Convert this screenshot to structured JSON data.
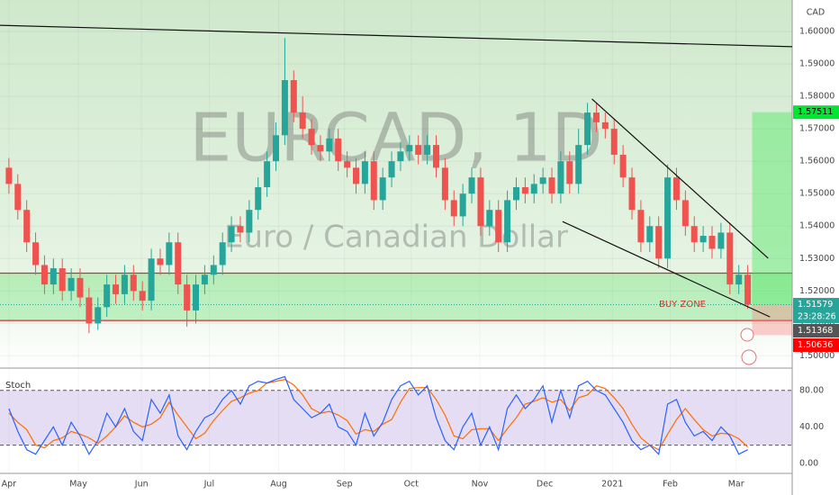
{
  "chart_data": {
    "type": "candlestick",
    "symbol_title": "EURCAD, 1D",
    "subtitle": "Euro / Canadian Dollar",
    "currency": "CAD",
    "open": [
      1.558,
      1.553,
      1.545,
      1.535,
      1.528,
      1.522,
      1.527,
      1.52,
      1.524,
      1.518,
      1.51,
      1.515,
      1.522,
      1.519,
      1.525,
      1.52,
      1.517,
      1.53,
      1.528,
      1.535,
      1.522,
      1.514,
      1.522,
      1.525,
      1.528,
      1.535,
      1.54,
      1.538,
      1.545,
      1.552,
      1.56,
      1.568,
      1.585,
      1.575,
      1.57,
      1.565,
      1.563,
      1.567,
      1.56,
      1.558,
      1.553,
      1.56,
      1.548,
      1.555,
      1.56,
      1.563,
      1.565,
      1.562,
      1.565,
      1.558,
      1.548,
      1.543,
      1.55,
      1.555,
      1.54,
      1.545,
      1.535,
      1.548,
      1.552,
      1.55,
      1.553,
      1.555,
      1.55,
      1.56,
      1.553,
      1.565,
      1.575,
      1.572,
      1.57,
      1.562,
      1.555,
      1.545,
      1.535,
      1.54,
      1.53,
      1.555,
      1.548,
      1.54,
      1.535,
      1.537,
      1.533,
      1.538,
      1.522,
      1.525
    ],
    "high": [
      1.561,
      1.556,
      1.548,
      1.538,
      1.531,
      1.53,
      1.53,
      1.527,
      1.527,
      1.521,
      1.518,
      1.525,
      1.525,
      1.528,
      1.528,
      1.523,
      1.533,
      1.533,
      1.538,
      1.538,
      1.525,
      1.525,
      1.528,
      1.531,
      1.538,
      1.543,
      1.543,
      1.548,
      1.555,
      1.563,
      1.572,
      1.598,
      1.588,
      1.58,
      1.573,
      1.568,
      1.57,
      1.57,
      1.563,
      1.561,
      1.563,
      1.563,
      1.558,
      1.563,
      1.566,
      1.568,
      1.568,
      1.568,
      1.568,
      1.561,
      1.551,
      1.553,
      1.558,
      1.558,
      1.548,
      1.548,
      1.551,
      1.555,
      1.555,
      1.556,
      1.558,
      1.558,
      1.563,
      1.563,
      1.57,
      1.578,
      1.578,
      1.575,
      1.573,
      1.565,
      1.558,
      1.548,
      1.543,
      1.543,
      1.559,
      1.558,
      1.551,
      1.543,
      1.54,
      1.54,
      1.541,
      1.541,
      1.528,
      1.528
    ],
    "low": [
      1.55,
      1.542,
      1.532,
      1.525,
      1.519,
      1.519,
      1.517,
      1.517,
      1.515,
      1.507,
      1.508,
      1.512,
      1.516,
      1.516,
      1.517,
      1.514,
      1.514,
      1.525,
      1.525,
      1.519,
      1.509,
      1.51,
      1.519,
      1.522,
      1.525,
      1.532,
      1.535,
      1.535,
      1.542,
      1.549,
      1.557,
      1.565,
      1.572,
      1.567,
      1.562,
      1.56,
      1.56,
      1.557,
      1.555,
      1.55,
      1.55,
      1.545,
      1.545,
      1.552,
      1.557,
      1.56,
      1.559,
      1.559,
      1.555,
      1.545,
      1.54,
      1.54,
      1.547,
      1.537,
      1.537,
      1.532,
      1.532,
      1.545,
      1.547,
      1.547,
      1.55,
      1.547,
      1.547,
      1.55,
      1.55,
      1.562,
      1.569,
      1.567,
      1.559,
      1.552,
      1.542,
      1.532,
      1.532,
      1.527,
      1.527,
      1.545,
      1.537,
      1.532,
      1.532,
      1.53,
      1.53,
      1.519,
      1.519,
      1.5145
    ],
    "close": [
      1.553,
      1.545,
      1.535,
      1.528,
      1.522,
      1.527,
      1.52,
      1.524,
      1.518,
      1.51,
      1.515,
      1.522,
      1.519,
      1.525,
      1.52,
      1.517,
      1.53,
      1.528,
      1.535,
      1.522,
      1.514,
      1.522,
      1.525,
      1.528,
      1.535,
      1.54,
      1.538,
      1.545,
      1.552,
      1.56,
      1.568,
      1.585,
      1.575,
      1.57,
      1.565,
      1.563,
      1.567,
      1.56,
      1.558,
      1.553,
      1.56,
      1.548,
      1.555,
      1.56,
      1.563,
      1.565,
      1.562,
      1.565,
      1.558,
      1.548,
      1.543,
      1.55,
      1.555,
      1.54,
      1.545,
      1.535,
      1.548,
      1.552,
      1.55,
      1.553,
      1.555,
      1.55,
      1.56,
      1.553,
      1.565,
      1.575,
      1.572,
      1.57,
      1.562,
      1.555,
      1.545,
      1.535,
      1.54,
      1.53,
      1.555,
      1.548,
      1.54,
      1.535,
      1.537,
      1.533,
      1.538,
      1.522,
      1.525,
      1.5158
    ],
    "up_color": "#26a69a",
    "down_color": "#ef5350",
    "xlim": [
      -1,
      88
    ],
    "xticks": [
      {
        "value": 0,
        "label": "Apr"
      },
      {
        "value": 7.8,
        "label": "May"
      },
      {
        "value": 14.9,
        "label": "Jun"
      },
      {
        "value": 22.5,
        "label": "Jul"
      },
      {
        "value": 30.3,
        "label": "Aug"
      },
      {
        "value": 37.7,
        "label": "Sep"
      },
      {
        "value": 45.2,
        "label": "Oct"
      },
      {
        "value": 52.9,
        "label": "Nov"
      },
      {
        "value": 60.2,
        "label": "Dec"
      },
      {
        "value": 67.8,
        "label": "2021"
      },
      {
        "value": 74.3,
        "label": "Feb"
      },
      {
        "value": 81.7,
        "label": "Mar"
      }
    ],
    "ylim": [
      1.4965,
      1.6097
    ],
    "yticks": [
      {
        "value": 1.5,
        "label": "1.50000"
      },
      {
        "value": 1.51,
        "label": "1.51000"
      },
      {
        "value": 1.52,
        "label": "1.52000"
      },
      {
        "value": 1.53,
        "label": "1.53000"
      },
      {
        "value": 1.54,
        "label": "1.54000"
      },
      {
        "value": 1.55,
        "label": "1.55000"
      },
      {
        "value": 1.56,
        "label": "1.56000"
      },
      {
        "value": 1.57,
        "label": "1.57000"
      },
      {
        "value": 1.58,
        "label": "1.58000"
      },
      {
        "value": 1.59,
        "label": "1.59000"
      },
      {
        "value": 1.6,
        "label": "1.60000"
      }
    ],
    "trendlines": [
      [
        -1,
        1.6019,
        88,
        1.5953
      ],
      [
        65.5,
        1.5792,
        85.3,
        1.5301
      ],
      [
        62.2,
        1.5414,
        85.5,
        1.512
      ]
    ],
    "buy_zone": {
      "label": "BUY ZONE",
      "range": [
        1.5109,
        1.5255
      ]
    },
    "position": {
      "target": 1.57511,
      "entry": 1.51579,
      "stop": 1.50636,
      "start": 83.5
    },
    "countdown": "23:28:26",
    "last_low": 1.51368,
    "stoch": {
      "name": "Stoch",
      "ylim": [
        -10,
        98.5
      ],
      "yticks": [
        {
          "value": 80,
          "label": "80.00"
        },
        {
          "value": 40,
          "label": "40.00"
        },
        {
          "value": 0,
          "label": "0.00"
        }
      ],
      "band": [
        20,
        80
      ],
      "k": {
        "color": "#2962ff",
        "values": [
          60,
          35,
          15,
          10,
          25,
          40,
          20,
          45,
          30,
          10,
          25,
          55,
          40,
          60,
          35,
          25,
          70,
          55,
          75,
          30,
          15,
          35,
          50,
          55,
          70,
          80,
          65,
          85,
          90,
          88,
          92,
          95,
          70,
          60,
          50,
          55,
          65,
          40,
          35,
          20,
          55,
          30,
          45,
          70,
          85,
          90,
          75,
          85,
          50,
          25,
          15,
          40,
          55,
          20,
          40,
          15,
          60,
          75,
          60,
          70,
          85,
          45,
          80,
          50,
          85,
          90,
          80,
          75,
          60,
          45,
          25,
          15,
          20,
          10,
          65,
          70,
          45,
          30,
          35,
          25,
          40,
          30,
          10,
          15
        ]
      },
      "d": {
        "color": "#ff6d00",
        "values": [
          55,
          45,
          37,
          20,
          17,
          25,
          28,
          35,
          32,
          28,
          22,
          30,
          40,
          52,
          45,
          40,
          43,
          50,
          67,
          53,
          40,
          27,
          33,
          47,
          58,
          68,
          72,
          77,
          80,
          88,
          90,
          92,
          86,
          75,
          60,
          55,
          57,
          53,
          47,
          32,
          37,
          35,
          43,
          48,
          67,
          82,
          83,
          83,
          70,
          53,
          30,
          27,
          37,
          38,
          38,
          25,
          38,
          50,
          65,
          68,
          72,
          67,
          70,
          58,
          72,
          75,
          85,
          82,
          72,
          60,
          43,
          28,
          20,
          15,
          32,
          48,
          60,
          48,
          37,
          30,
          33,
          32,
          27,
          18
        ]
      }
    }
  }
}
